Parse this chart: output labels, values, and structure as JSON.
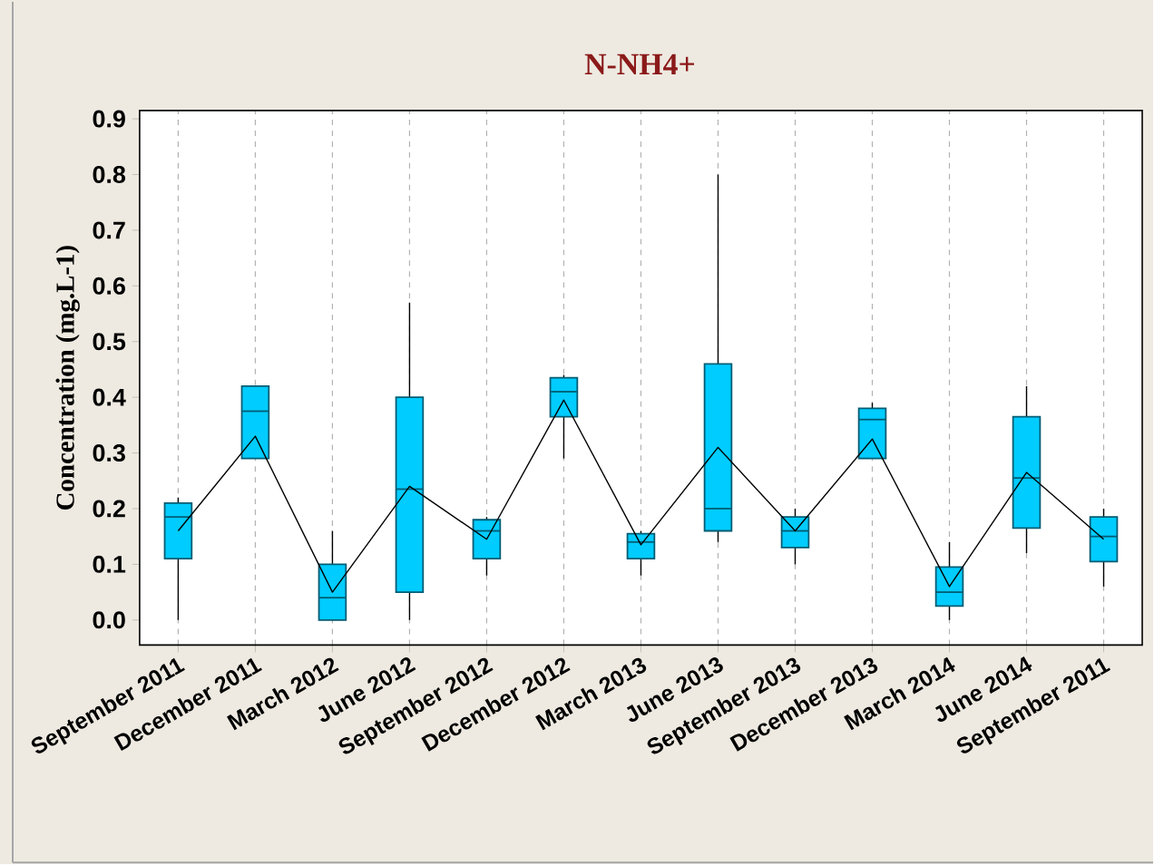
{
  "chart_data": {
    "type": "box",
    "title": "N-NH4+",
    "ylabel": "Concentration (mg.L-1)",
    "categories": [
      "September 2011",
      "December 2011",
      "March 2012",
      "June 2012",
      "September 2012",
      "December 2012",
      "March 2013",
      "June 2013",
      "September 2013",
      "December 2013",
      "March 2014",
      "June 2014",
      "September 2011"
    ],
    "ylim": [
      -0.045,
      0.915
    ],
    "yticks": [
      {
        "value": 0,
        "label": "0.0"
      },
      0.1,
      0.2,
      0.3,
      0.4,
      0.5,
      0.6,
      0.7,
      0.8,
      0.9
    ],
    "grid": "x",
    "series": [
      {
        "color": "#00ccff",
        "boxes": [
          {
            "low": 0,
            "q1": 0.11,
            "median": 0.185,
            "q3": 0.21,
            "high": 0.22
          },
          {
            "low": 0.29,
            "q1": 0.29,
            "median": 0.375,
            "q3": 0.42,
            "high": 0.42
          },
          {
            "low": 0,
            "q1": 0,
            "median": 0.04,
            "q3": 0.1,
            "high": 0.16
          },
          {
            "low": 0,
            "q1": 0.05,
            "median": 0.235,
            "q3": 0.4,
            "high": 0.57
          },
          {
            "low": 0.08,
            "q1": 0.11,
            "median": 0.16,
            "q3": 0.18,
            "high": 0.185
          },
          {
            "low": 0.29,
            "q1": 0.365,
            "median": 0.41,
            "q3": 0.435,
            "high": 0.44
          },
          {
            "low": 0.08,
            "q1": 0.11,
            "median": 0.14,
            "q3": 0.155,
            "high": 0.16
          },
          {
            "low": 0.14,
            "q1": 0.16,
            "median": 0.2,
            "q3": 0.46,
            "high": 0.8
          },
          {
            "low": 0.1,
            "q1": 0.13,
            "median": 0.16,
            "q3": 0.185,
            "high": 0.2
          },
          {
            "low": 0.29,
            "q1": 0.29,
            "median": 0.36,
            "q3": 0.38,
            "high": 0.39
          },
          {
            "low": 0,
            "q1": 0.025,
            "median": 0.05,
            "q3": 0.095,
            "high": 0.14
          },
          {
            "low": 0.12,
            "q1": 0.165,
            "median": 0.255,
            "q3": 0.365,
            "high": 0.42
          },
          {
            "low": 0.06,
            "q1": 0.105,
            "median": 0.15,
            "q3": 0.185,
            "high": 0.2
          }
        ]
      },
      {
        "type": "line",
        "color": "#000000",
        "values": [
          0.16,
          0.33,
          0.05,
          0.24,
          0.145,
          0.395,
          0.135,
          0.31,
          0.16,
          0.325,
          0.06,
          0.265,
          0.145
        ]
      }
    ]
  }
}
